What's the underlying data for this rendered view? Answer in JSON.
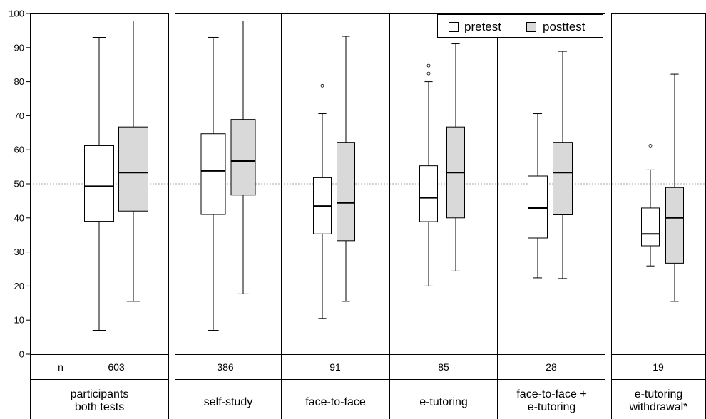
{
  "chart_data": {
    "type": "boxplot",
    "ylim": [
      0,
      100
    ],
    "yticks": [
      0,
      10,
      20,
      30,
      40,
      50,
      60,
      70,
      80,
      90,
      100
    ],
    "reference_line": 50,
    "grid": false,
    "legend": {
      "placement": "top-right",
      "entries": [
        {
          "label": "pretest",
          "color": "#ffffff"
        },
        {
          "label": "posttest",
          "color": "#d9d9d9"
        }
      ]
    },
    "n_prefix": "n",
    "groups": [
      {
        "label": [
          "participants",
          "both tests"
        ],
        "n": "603",
        "pretest": {
          "min": 7,
          "q1": 39,
          "median": 49.3,
          "q3": 61.2,
          "max": 93,
          "outliers": []
        },
        "posttest": {
          "min": 15.5,
          "q1": 42,
          "median": 53.3,
          "q3": 66.7,
          "max": 97.8,
          "outliers": []
        }
      },
      {
        "label": [
          "self-study"
        ],
        "n": "386",
        "pretest": {
          "min": 7,
          "q1": 41,
          "median": 53.8,
          "q3": 64.7,
          "max": 93,
          "outliers": []
        },
        "posttest": {
          "min": 17.7,
          "q1": 46.7,
          "median": 56.7,
          "q3": 68.9,
          "max": 97.8,
          "outliers": []
        }
      },
      {
        "label": [
          "face-to-face"
        ],
        "n": "91",
        "pretest": {
          "min": 10.5,
          "q1": 35.3,
          "median": 43.5,
          "q3": 51.8,
          "max": 70.6,
          "outliers": [
            78.8
          ]
        },
        "posttest": {
          "min": 15.5,
          "q1": 33.3,
          "median": 44.4,
          "q3": 62.2,
          "max": 93.3,
          "outliers": []
        }
      },
      {
        "label": [
          "e-tutoring"
        ],
        "n": "85",
        "pretest": {
          "min": 20,
          "q1": 38.9,
          "median": 45.9,
          "q3": 55.3,
          "max": 80,
          "outliers": [
            82.4,
            84.7
          ]
        },
        "posttest": {
          "min": 24.4,
          "q1": 40,
          "median": 53.3,
          "q3": 66.7,
          "max": 91.1,
          "outliers": []
        }
      },
      {
        "label": [
          "face-to-face +",
          "e-tutoring"
        ],
        "n": "28",
        "pretest": {
          "min": 22.4,
          "q1": 34.1,
          "median": 42.9,
          "q3": 52.3,
          "max": 70.6,
          "outliers": []
        },
        "posttest": {
          "min": 22.2,
          "q1": 40.9,
          "median": 53.3,
          "q3": 62.2,
          "max": 88.9,
          "outliers": []
        }
      },
      {
        "label": [
          "e-tutoring",
          "withdrawal*"
        ],
        "n": "19",
        "pretest": {
          "min": 25.9,
          "q1": 31.8,
          "median": 35.3,
          "q3": 42.9,
          "max": 54.1,
          "outliers": [
            61.2
          ]
        },
        "posttest": {
          "min": 15.5,
          "q1": 26.7,
          "median": 40,
          "q3": 48.9,
          "max": 82.2,
          "outliers": []
        }
      }
    ]
  }
}
